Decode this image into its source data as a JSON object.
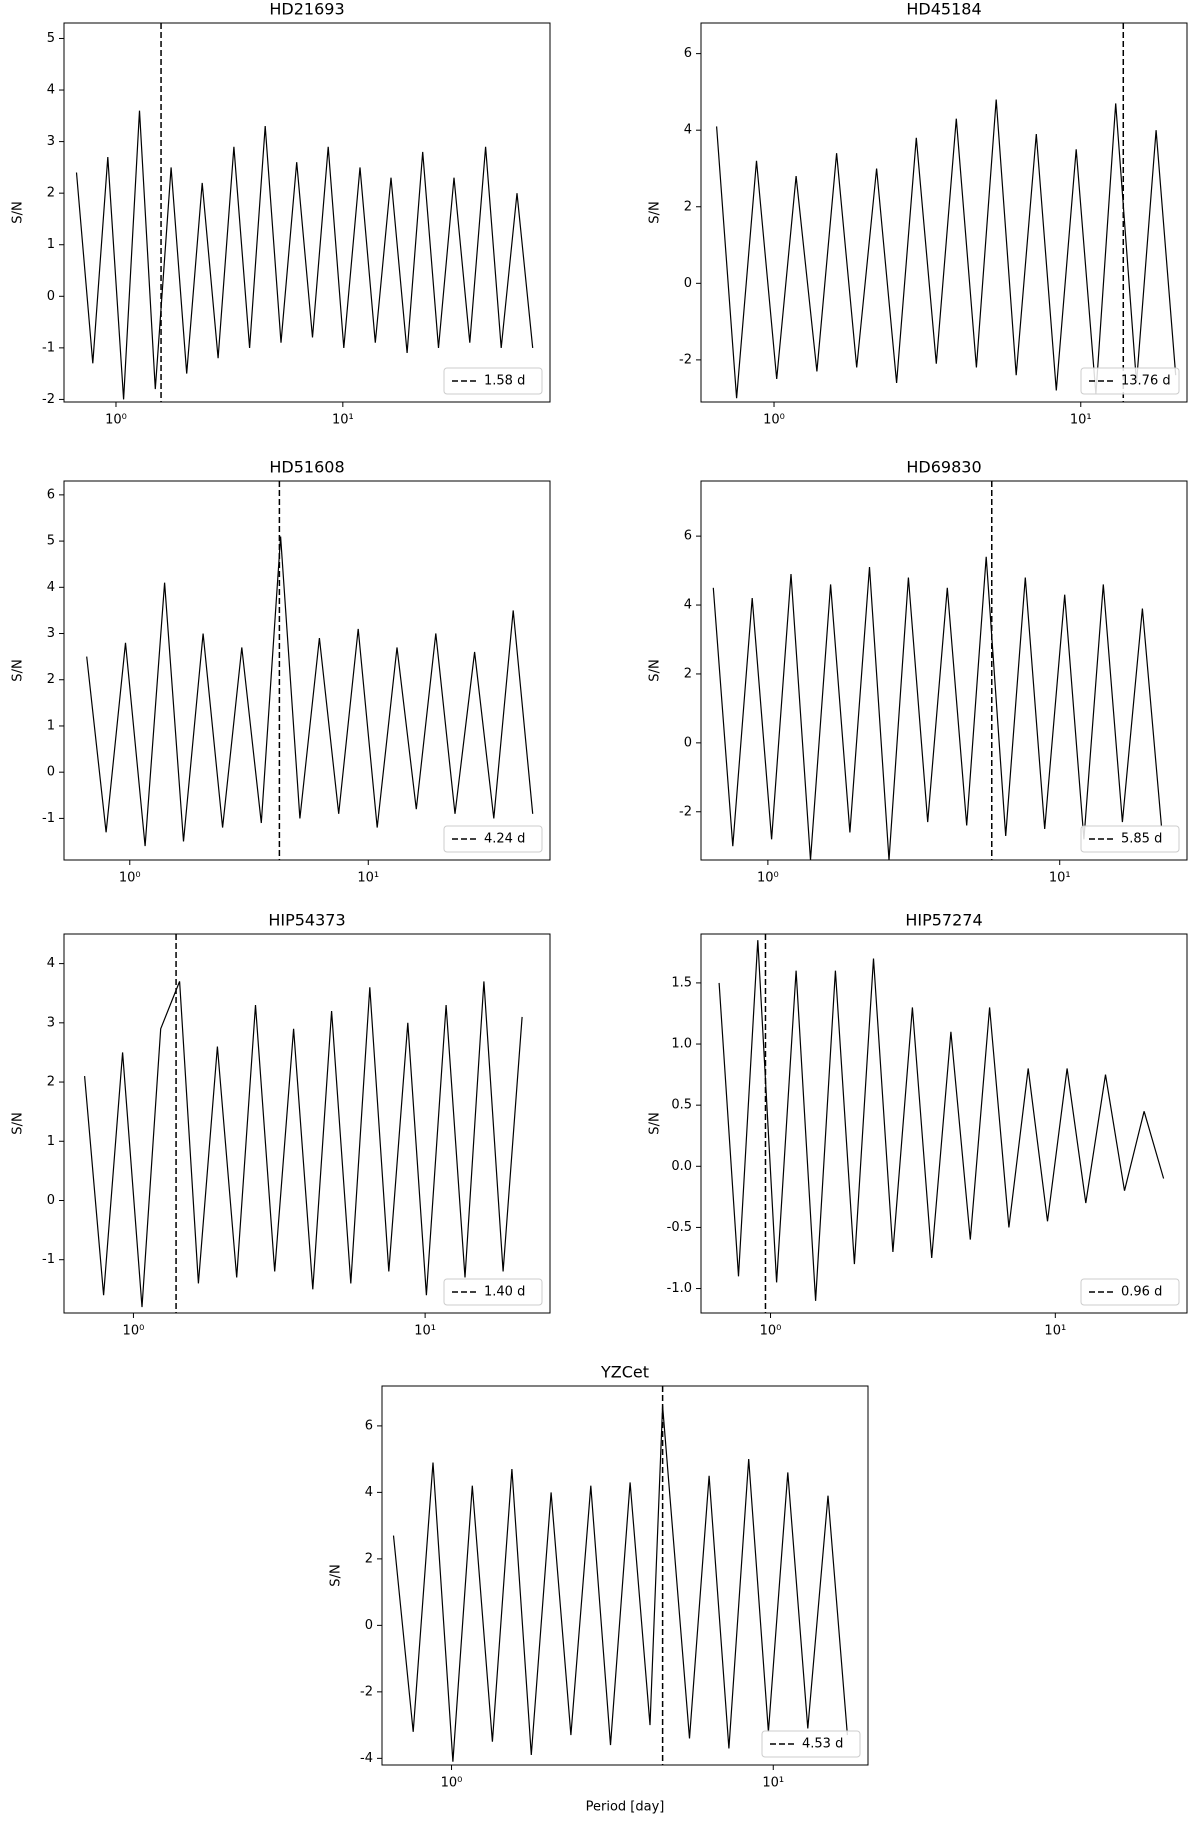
{
  "chart_data": [
    {
      "type": "line",
      "title": "HD21693",
      "ylabel": "S/N",
      "log_x": true,
      "color": "#000000",
      "legend": "lower right",
      "xlim": [
        0.59,
        81.9
      ],
      "ylim": [
        -2.05,
        5.3
      ],
      "yticks": [
        -2,
        -1,
        0,
        1,
        2,
        3,
        4,
        5
      ],
      "xticks": [
        {
          "value": 1,
          "label": "10⁰"
        },
        {
          "value": 10,
          "label": "10¹"
        }
      ],
      "vline": {
        "value": 1.58,
        "label": "1.58 d"
      },
      "x": [
        0.67,
        0.79,
        0.92,
        1.08,
        1.27,
        1.49,
        1.75,
        2.05,
        2.4,
        2.82,
        3.31,
        3.88,
        4.55,
        5.34,
        6.26,
        7.35,
        8.62,
        10.1,
        11.9,
        13.9,
        16.3,
        19.2,
        22.5,
        26.4,
        30.9,
        36.3,
        42.6,
        49.9,
        58.6,
        68.7
      ],
      "values": [
        2.4,
        -1.3,
        2.7,
        -2.0,
        3.6,
        -1.8,
        2.5,
        -1.5,
        2.2,
        -1.2,
        2.9,
        -1.0,
        3.3,
        -0.9,
        2.6,
        -0.8,
        2.9,
        -1.0,
        2.5,
        -0.9,
        2.3,
        -1.1,
        2.8,
        -1.0,
        2.3,
        -0.9,
        2.9,
        -1.0,
        2.0,
        -1.0
      ]
    },
    {
      "type": "line",
      "title": "HD45184",
      "ylabel": "S/N",
      "log_x": true,
      "color": "#000000",
      "legend": "lower right",
      "xlim": [
        0.578,
        22.2
      ],
      "ylim": [
        -3.1,
        6.8
      ],
      "yticks": [
        -2,
        0,
        2,
        4,
        6
      ],
      "xticks": [
        {
          "value": 1,
          "label": "10⁰"
        },
        {
          "value": 10,
          "label": "10¹"
        }
      ],
      "vline": {
        "value": 13.76,
        "label": "13.76 d"
      },
      "x": [
        0.65,
        0.755,
        0.877,
        1.02,
        1.18,
        1.38,
        1.6,
        1.86,
        2.16,
        2.51,
        2.91,
        3.38,
        3.93,
        4.57,
        5.3,
        6.16,
        7.16,
        8.32,
        9.66,
        11.2,
        13.0,
        15.2,
        17.6,
        20.4
      ],
      "values": [
        4.1,
        -3.0,
        3.2,
        -2.5,
        2.8,
        -2.3,
        3.4,
        -2.2,
        3.0,
        -2.6,
        3.8,
        -2.1,
        4.3,
        -2.2,
        4.8,
        -2.4,
        3.9,
        -2.8,
        3.5,
        -2.9,
        4.7,
        -2.6,
        4.0,
        -2.4
      ]
    },
    {
      "type": "line",
      "title": "HD51608",
      "ylabel": "S/N",
      "log_x": true,
      "color": "#000000",
      "legend": "lower right",
      "xlim": [
        0.53,
        57.8
      ],
      "ylim": [
        -1.9,
        6.3
      ],
      "yticks": [
        -1,
        0,
        1,
        2,
        3,
        4,
        5,
        6
      ],
      "xticks": [
        {
          "value": 1,
          "label": "10⁰"
        },
        {
          "value": 10,
          "label": "10¹"
        }
      ],
      "vline": {
        "value": 4.24,
        "label": "4.24 d"
      },
      "x": [
        0.66,
        0.796,
        0.96,
        1.16,
        1.4,
        1.68,
        2.03,
        2.45,
        2.95,
        3.56,
        4.29,
        5.17,
        6.24,
        7.52,
        9.07,
        10.9,
        13.2,
        15.9,
        19.2,
        23.1,
        27.9,
        33.6,
        40.5,
        48.9
      ],
      "values": [
        2.5,
        -1.3,
        2.8,
        -1.6,
        4.1,
        -1.5,
        3.0,
        -1.2,
        2.7,
        -1.1,
        5.1,
        -1.0,
        2.9,
        -0.9,
        3.1,
        -1.2,
        2.7,
        -0.8,
        3.0,
        -0.9,
        2.6,
        -1.0,
        3.5,
        -0.9
      ]
    },
    {
      "type": "line",
      "title": "HD69830",
      "ylabel": "S/N",
      "log_x": true,
      "color": "#000000",
      "legend": "lower right",
      "xlim": [
        0.59,
        27.3
      ],
      "ylim": [
        -3.4,
        7.6
      ],
      "yticks": [
        -2,
        0,
        2,
        4,
        6
      ],
      "xticks": [
        {
          "value": 1,
          "label": "10⁰"
        },
        {
          "value": 10,
          "label": "10¹"
        }
      ],
      "vline": {
        "value": 5.85,
        "label": "5.85 d"
      },
      "x": [
        0.65,
        0.758,
        0.884,
        1.03,
        1.2,
        1.4,
        1.64,
        1.91,
        2.23,
        2.6,
        3.03,
        3.53,
        4.12,
        4.8,
        5.6,
        6.53,
        7.62,
        8.88,
        10.4,
        12.1,
        14.1,
        16.4,
        19.2,
        22.3
      ],
      "values": [
        4.5,
        -3.0,
        4.2,
        -2.8,
        4.9,
        -3.4,
        4.6,
        -2.6,
        5.1,
        -3.4,
        4.8,
        -2.3,
        4.5,
        -2.4,
        5.4,
        -2.7,
        4.8,
        -2.5,
        4.3,
        -2.8,
        4.6,
        -2.3,
        3.9,
        -2.4
      ]
    },
    {
      "type": "line",
      "title": "HIP54373",
      "ylabel": "S/N",
      "log_x": true,
      "color": "#000000",
      "legend": "lower right",
      "xlim": [
        0.578,
        26.8
      ],
      "ylim": [
        -1.9,
        4.5
      ],
      "yticks": [
        -1,
        0,
        1,
        2,
        3,
        4
      ],
      "xticks": [
        {
          "value": 1,
          "label": "10⁰"
        },
        {
          "value": 10,
          "label": "10¹"
        }
      ],
      "vline": {
        "value": 1.4,
        "label": "1.40 d"
      },
      "x": [
        0.68,
        0.79,
        0.918,
        1.07,
        1.24,
        1.44,
        1.67,
        1.94,
        2.26,
        2.62,
        3.05,
        3.54,
        4.12,
        4.78,
        5.56,
        6.46,
        7.51,
        8.72,
        10.1,
        11.8,
        13.7,
        15.9,
        18.5,
        21.5
      ],
      "values": [
        2.1,
        -1.6,
        2.5,
        -1.8,
        2.9,
        3.7,
        -1.4,
        2.6,
        -1.3,
        3.3,
        -1.2,
        2.9,
        -1.5,
        3.2,
        -1.4,
        3.6,
        -1.2,
        3.0,
        -1.6,
        3.3,
        -1.3,
        3.7,
        -1.2,
        3.1
      ]
    },
    {
      "type": "line",
      "title": "HIP57274",
      "ylabel": "S/N",
      "log_x": true,
      "color": "#000000",
      "legend": "lower right",
      "xlim": [
        0.57,
        29
      ],
      "ylim": [
        -1.2,
        1.9
      ],
      "yticks": [
        {
          "value": -1,
          "label": "-1.0"
        },
        {
          "value": -0.5,
          "label": "-0.5"
        },
        {
          "value": 0,
          "label": "0.0"
        },
        {
          "value": 0.5,
          "label": "0.5"
        },
        {
          "value": 1,
          "label": "1.0"
        },
        {
          "value": 1.5,
          "label": "1.5"
        }
      ],
      "xticks": [
        {
          "value": 1,
          "label": "10⁰"
        },
        {
          "value": 10,
          "label": "10¹"
        }
      ],
      "vline": {
        "value": 0.96,
        "label": "0.96 d"
      },
      "x": [
        0.66,
        0.772,
        0.902,
        1.05,
        1.23,
        1.44,
        1.69,
        1.97,
        2.3,
        2.69,
        3.15,
        3.68,
        4.3,
        5.03,
        5.88,
        6.87,
        8.03,
        9.39,
        11.0,
        12.8,
        15.0,
        17.5,
        20.5,
        24.0
      ],
      "values": [
        1.5,
        -0.9,
        1.85,
        -0.95,
        1.6,
        -1.1,
        1.6,
        -0.8,
        1.7,
        -0.7,
        1.3,
        -0.75,
        1.1,
        -0.6,
        1.3,
        -0.5,
        0.8,
        -0.45,
        0.8,
        -0.3,
        0.75,
        -0.2,
        0.45,
        -0.1
      ]
    },
    {
      "type": "line",
      "title": "YZCet",
      "ylabel": "S/N",
      "xlabel": "Period [day]",
      "log_x": true,
      "color": "#000000",
      "legend": "lower right",
      "xlim": [
        0.608,
        19.7
      ],
      "ylim": [
        -4.2,
        7.2
      ],
      "yticks": [
        -4,
        -2,
        0,
        2,
        4,
        6
      ],
      "xticks": [
        {
          "value": 1,
          "label": "10⁰"
        },
        {
          "value": 10,
          "label": "10¹"
        }
      ],
      "vline": {
        "value": 4.53,
        "label": "4.53 d"
      },
      "x": [
        0.66,
        0.76,
        0.876,
        1.01,
        1.16,
        1.34,
        1.54,
        1.77,
        2.04,
        2.35,
        2.71,
        3.12,
        3.59,
        4.14,
        4.53,
        5.49,
        6.32,
        7.28,
        8.39,
        9.66,
        11.1,
        12.8,
        14.8,
        17.0
      ],
      "values": [
        2.7,
        -3.2,
        4.9,
        -4.1,
        4.2,
        -3.5,
        4.7,
        -3.9,
        4.0,
        -3.3,
        4.2,
        -3.6,
        4.3,
        -3.0,
        6.6,
        -3.4,
        4.5,
        -3.7,
        5.0,
        -3.2,
        4.6,
        -3.1,
        3.9,
        -3.3
      ]
    }
  ]
}
